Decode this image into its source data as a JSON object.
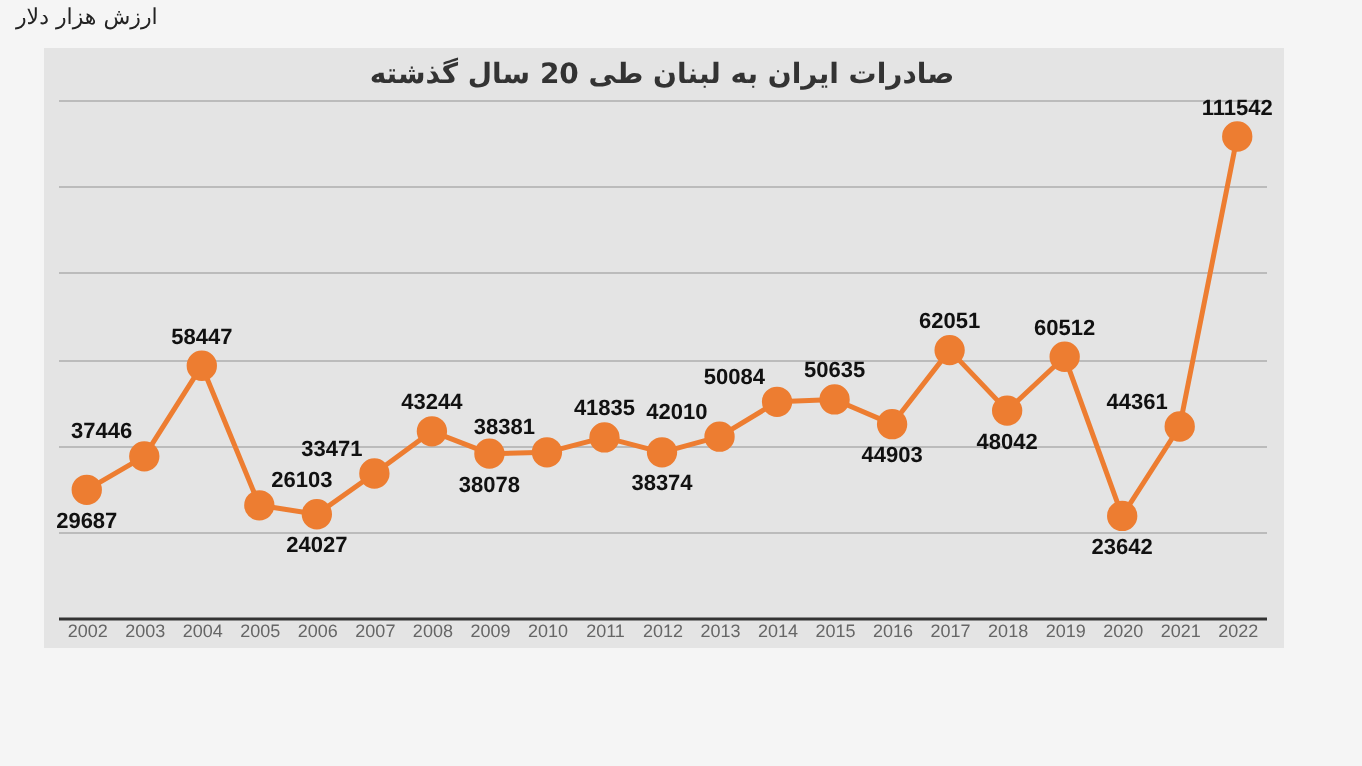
{
  "chart_data": {
    "type": "line",
    "title": "صادرات ایران به لبنان طی 20 سال گذشته",
    "annotations": [
      "ارزش هزار دلار"
    ],
    "categories": [
      "2002",
      "2003",
      "2004",
      "2005",
      "2006",
      "2007",
      "2008",
      "2009",
      "2010",
      "2011",
      "2012",
      "2013",
      "2014",
      "2015",
      "2016",
      "2017",
      "2018",
      "2019",
      "2020",
      "2021",
      "2022"
    ],
    "series": [
      {
        "color": "#ed7d31",
        "values": [
          29687,
          37446,
          58447,
          26103,
          24027,
          33471,
          43244,
          38078,
          38381,
          41835,
          38374,
          42010,
          50084,
          50635,
          44903,
          62051,
          48042,
          60512,
          23642,
          44361,
          111542
        ]
      }
    ],
    "ylim": [
      0,
      120000
    ],
    "yticks": [
      {
        "value": 0,
        "label": null
      },
      {
        "value": 20000,
        "label": null
      },
      {
        "value": 40000,
        "label": null
      },
      {
        "value": 60000,
        "label": null
      },
      {
        "value": 80000,
        "label": null
      },
      {
        "value": 100000,
        "label": null
      },
      {
        "value": 120000,
        "label": null
      }
    ],
    "tick_labels": "x",
    "grid": "y",
    "marker": "circle",
    "line_style": "solid",
    "data_labels": true
  }
}
